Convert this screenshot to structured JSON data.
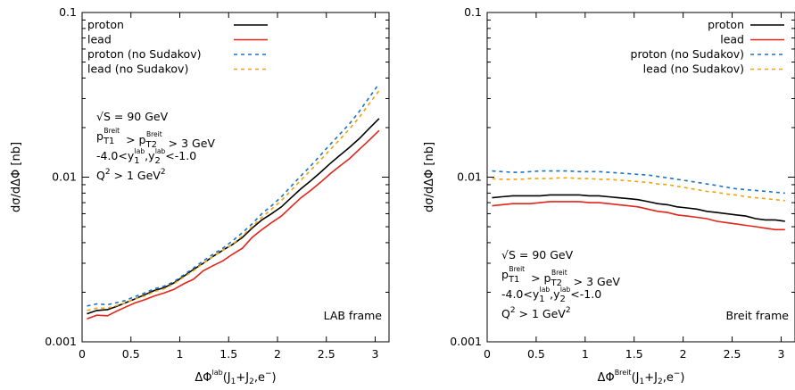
{
  "chart_data": [
    {
      "type": "line",
      "frame_label": "LAB frame",
      "xlabel": "ΔΦ^lab(J1+J2,e-)",
      "ylabel": "dσ/dΔΦ [nb]",
      "xlim": [
        0,
        3.14159
      ],
      "ylim": [
        0.001,
        0.1
      ],
      "yscale": "log",
      "legend_position": "top-left",
      "x_ticks": [
        "0",
        "0.5",
        "1",
        "1.5",
        "2",
        "2.5",
        "3"
      ],
      "y_ticks": [
        "0.001",
        "0.01",
        "0.1"
      ],
      "annotations": [
        "√S = 90 GeV",
        "pT1Breit > pT2Breit > 3 GeV",
        "-4.0<y1lab,y2lab<-1.0",
        "Q2 > 1 GeV2"
      ],
      "x": [
        0.05,
        0.15,
        0.26,
        0.34,
        0.44,
        0.54,
        0.64,
        0.74,
        0.84,
        0.94,
        1.04,
        1.14,
        1.24,
        1.34,
        1.44,
        1.54,
        1.64,
        1.74,
        1.84,
        1.94,
        2.04,
        2.14,
        2.24,
        2.34,
        2.44,
        2.54,
        2.64,
        2.74,
        2.84,
        2.94,
        3.04
      ],
      "series": [
        {
          "name": "proton",
          "color": "#000000",
          "dash": "solid",
          "values": [
            0.00148,
            0.00155,
            0.00157,
            0.00163,
            0.00172,
            0.00182,
            0.00193,
            0.00205,
            0.00213,
            0.00228,
            0.0025,
            0.00275,
            0.003,
            0.0033,
            0.0036,
            0.0039,
            0.0043,
            0.0049,
            0.0055,
            0.006,
            0.0066,
            0.0075,
            0.0085,
            0.0095,
            0.0107,
            0.0121,
            0.0136,
            0.0152,
            0.0172,
            0.0198,
            0.0227
          ]
        },
        {
          "name": "lead",
          "color": "#e0251b",
          "dash": "solid",
          "values": [
            0.00138,
            0.00145,
            0.00144,
            0.00152,
            0.00162,
            0.00172,
            0.0018,
            0.0019,
            0.00198,
            0.00208,
            0.00225,
            0.0024,
            0.0027,
            0.0029,
            0.0031,
            0.0034,
            0.0037,
            0.0043,
            0.0048,
            0.0053,
            0.0058,
            0.0066,
            0.0075,
            0.0083,
            0.0093,
            0.0105,
            0.0117,
            0.013,
            0.0148,
            0.0168,
            0.0192
          ]
        },
        {
          "name": "proton (no Sudakov)",
          "color": "#1e73be",
          "dash": "dashed",
          "values": [
            0.00165,
            0.0017,
            0.00168,
            0.00172,
            0.00178,
            0.00188,
            0.00198,
            0.0021,
            0.00218,
            0.00232,
            0.00255,
            0.0028,
            0.0031,
            0.0034,
            0.0037,
            0.0041,
            0.0046,
            0.0052,
            0.006,
            0.0067,
            0.0076,
            0.0088,
            0.0102,
            0.0117,
            0.0136,
            0.0158,
            0.0183,
            0.0212,
            0.0252,
            0.0305,
            0.037
          ]
        },
        {
          "name": "lead (no Sudakov)",
          "color": "#f0a30a",
          "dash": "dashed",
          "values": [
            0.00155,
            0.0016,
            0.0016,
            0.00165,
            0.00172,
            0.00182,
            0.0019,
            0.00202,
            0.0021,
            0.00225,
            0.00247,
            0.0027,
            0.003,
            0.0033,
            0.0036,
            0.0039,
            0.0044,
            0.005,
            0.0057,
            0.0064,
            0.0072,
            0.0083,
            0.0096,
            0.011,
            0.0127,
            0.0147,
            0.017,
            0.0197,
            0.0232,
            0.028,
            0.0335
          ]
        }
      ]
    },
    {
      "type": "line",
      "frame_label": "Breit frame",
      "xlabel": "ΔΦ^Breit(J1+J2,e-)",
      "ylabel": "dσ/dΔΦ [nb]",
      "xlim": [
        0,
        3.14159
      ],
      "ylim": [
        0.001,
        0.1
      ],
      "yscale": "log",
      "legend_position": "top-right",
      "x_ticks": [
        "0",
        "0.5",
        "1",
        "1.5",
        "2",
        "2.5",
        "3"
      ],
      "y_ticks": [
        "0.001",
        "0.01",
        "0.1"
      ],
      "annotations": [
        "√S = 90 GeV",
        "pT1Breit > pT2Breit > 3 GeV",
        "-4.0<y1lab,y2lab<-1.0",
        "Q2 > 1 GeV2"
      ],
      "x": [
        0.05,
        0.15,
        0.26,
        0.34,
        0.44,
        0.54,
        0.64,
        0.74,
        0.84,
        0.94,
        1.04,
        1.14,
        1.24,
        1.34,
        1.44,
        1.54,
        1.64,
        1.74,
        1.84,
        1.94,
        2.04,
        2.14,
        2.24,
        2.34,
        2.44,
        2.54,
        2.64,
        2.74,
        2.84,
        2.94,
        3.04
      ],
      "series": [
        {
          "name": "proton",
          "color": "#000000",
          "dash": "solid",
          "values": [
            0.0075,
            0.0076,
            0.0077,
            0.0077,
            0.0077,
            0.0077,
            0.0078,
            0.0078,
            0.0078,
            0.0078,
            0.0077,
            0.0077,
            0.0076,
            0.0075,
            0.0074,
            0.0073,
            0.0071,
            0.0069,
            0.0068,
            0.0066,
            0.0065,
            0.0064,
            0.0062,
            0.0061,
            0.006,
            0.0059,
            0.0058,
            0.0056,
            0.0055,
            0.0055,
            0.0054
          ]
        },
        {
          "name": "lead",
          "color": "#e0251b",
          "dash": "solid",
          "values": [
            0.0067,
            0.0068,
            0.0069,
            0.0069,
            0.0069,
            0.007,
            0.0071,
            0.0071,
            0.0071,
            0.0071,
            0.007,
            0.007,
            0.0069,
            0.0068,
            0.0067,
            0.0066,
            0.0064,
            0.0062,
            0.0061,
            0.0059,
            0.0058,
            0.0057,
            0.0056,
            0.0054,
            0.0053,
            0.0052,
            0.0051,
            0.005,
            0.0049,
            0.0048,
            0.0048
          ]
        },
        {
          "name": "proton (no Sudakov)",
          "color": "#1e73be",
          "dash": "dashed",
          "values": [
            0.0109,
            0.0108,
            0.0107,
            0.0107,
            0.0108,
            0.0109,
            0.0109,
            0.0109,
            0.0109,
            0.0108,
            0.0108,
            0.0108,
            0.0107,
            0.0106,
            0.0105,
            0.0104,
            0.0103,
            0.0101,
            0.0099,
            0.0097,
            0.0095,
            0.0093,
            0.0091,
            0.0089,
            0.0087,
            0.0085,
            0.0084,
            0.0083,
            0.0082,
            0.0081,
            0.008
          ]
        },
        {
          "name": "lead (no Sudakov)",
          "color": "#f0a30a",
          "dash": "dashed",
          "values": [
            0.0098,
            0.0097,
            0.0097,
            0.0097,
            0.0098,
            0.0098,
            0.0098,
            0.0099,
            0.0099,
            0.0098,
            0.0098,
            0.0097,
            0.0097,
            0.0096,
            0.0095,
            0.0094,
            0.0093,
            0.0091,
            0.009,
            0.0088,
            0.0086,
            0.0084,
            0.0082,
            0.0081,
            0.0079,
            0.0078,
            0.0076,
            0.0075,
            0.0074,
            0.0073,
            0.0072
          ]
        }
      ]
    }
  ]
}
